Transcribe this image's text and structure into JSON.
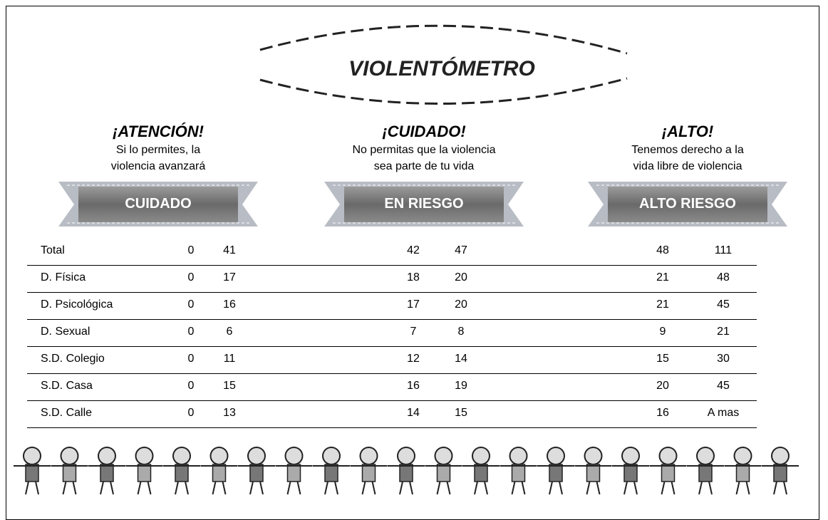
{
  "title": "VIOLENTÓMETRO",
  "sections": [
    {
      "heading": "¡ATENCIÓN!",
      "lines": [
        "Si lo permites, la",
        "violencia avanzará"
      ],
      "ribbon": "CUIDADO"
    },
    {
      "heading": "¡CUIDADO!",
      "lines": [
        "No permitas que la violencia",
        "sea parte de tu vida"
      ],
      "ribbon": "EN RIESGO"
    },
    {
      "heading": "¡ALTO!",
      "lines": [
        "Tenemos derecho a la",
        "vida libre de violencia"
      ],
      "ribbon": "ALTO RIESGO"
    }
  ],
  "table": {
    "rows": [
      [
        "Total",
        0,
        41,
        42,
        47,
        48,
        111
      ],
      [
        "D. Física",
        0,
        17,
        18,
        20,
        21,
        48
      ],
      [
        "D. Psicológica",
        0,
        16,
        17,
        20,
        21,
        45
      ],
      [
        "D. Sexual",
        0,
        6,
        7,
        8,
        9,
        21
      ],
      [
        "S.D. Colegio",
        0,
        11,
        12,
        14,
        15,
        30
      ],
      [
        "S.D. Casa",
        0,
        15,
        16,
        19,
        20,
        45
      ],
      [
        "S.D. Calle",
        0,
        13,
        14,
        15,
        16,
        "A mas"
      ]
    ]
  }
}
